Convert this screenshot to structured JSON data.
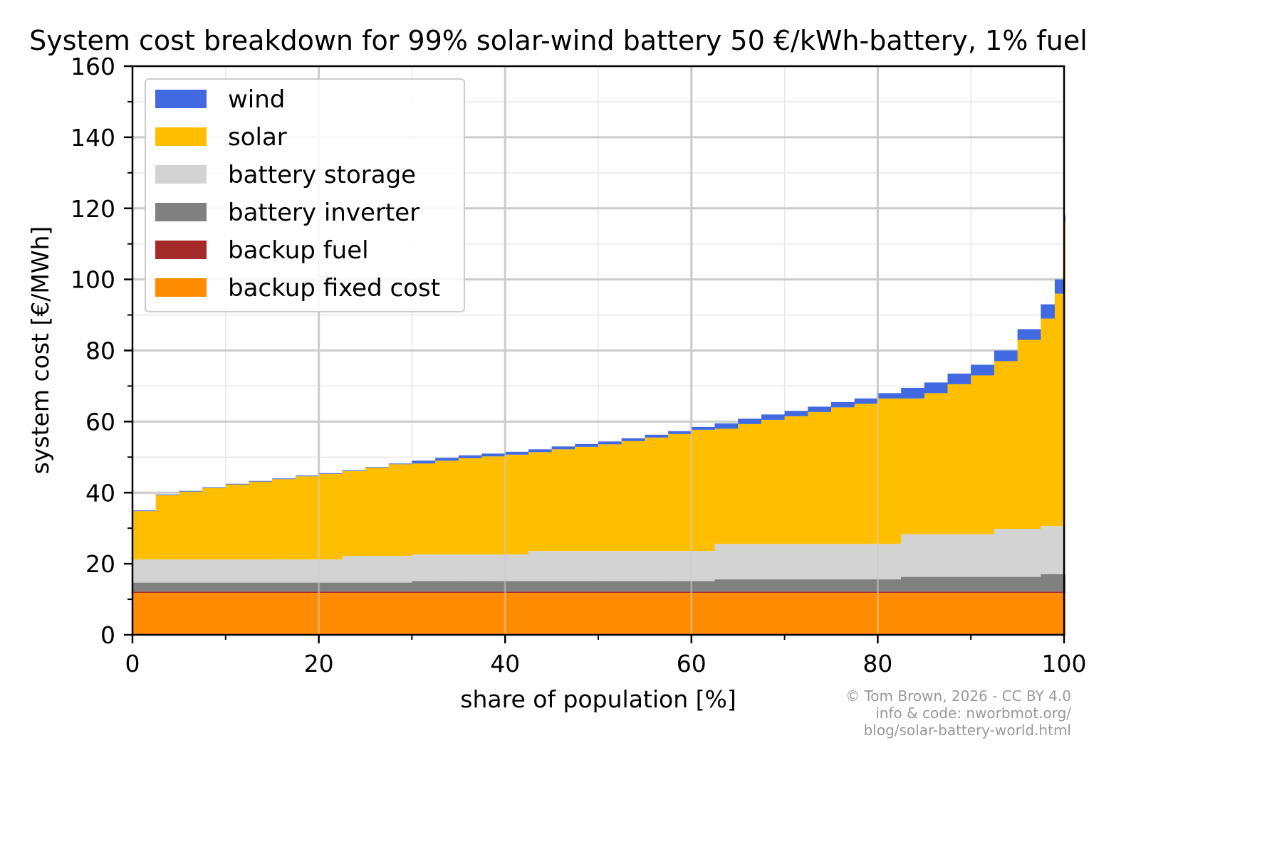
{
  "chart_data": {
    "type": "bar",
    "stacked": true,
    "title": "System cost breakdown for 99% solar-wind battery 50 €/kWh-battery, 1% fuel",
    "xlabel": "share of population [%]",
    "ylabel": "system cost [€/MWh]",
    "xlim": [
      0,
      100
    ],
    "ylim": [
      0,
      160
    ],
    "xticks": [
      "0",
      "20",
      "40",
      "60",
      "80",
      "100"
    ],
    "yticks": [
      "0",
      "20",
      "40",
      "60",
      "80",
      "100",
      "120",
      "140",
      "160"
    ],
    "grid": true,
    "legend_position": "top-left",
    "x": [
      0,
      2.5,
      5,
      7.5,
      10,
      12.5,
      15,
      17.5,
      20,
      22.5,
      25,
      27.5,
      30,
      32.5,
      35,
      37.5,
      40,
      42.5,
      45,
      47.5,
      50,
      52.5,
      55,
      57.5,
      60,
      62.5,
      65,
      67.5,
      70,
      72.5,
      75,
      77.5,
      80,
      82.5,
      85,
      87.5,
      90,
      92.5,
      95,
      97.5,
      99,
      100
    ],
    "series": [
      {
        "name": "backup fixed cost",
        "color": "#ff8c00",
        "values": [
          11.8,
          11.8,
          11.8,
          11.8,
          11.8,
          11.8,
          11.8,
          11.8,
          11.8,
          11.8,
          11.8,
          11.8,
          11.8,
          11.8,
          11.8,
          11.8,
          11.8,
          11.8,
          11.8,
          11.8,
          11.8,
          11.8,
          11.8,
          11.8,
          11.8,
          11.8,
          11.8,
          11.8,
          11.8,
          11.8,
          11.8,
          11.8,
          11.8,
          11.8,
          11.8,
          11.8,
          11.8,
          11.8,
          11.8,
          11.8,
          11.8,
          11.8
        ]
      },
      {
        "name": "backup fuel",
        "color": "#a52a2a",
        "values": [
          0.3,
          0.3,
          0.3,
          0.3,
          0.3,
          0.3,
          0.3,
          0.3,
          0.3,
          0.3,
          0.3,
          0.3,
          0.3,
          0.3,
          0.3,
          0.3,
          0.3,
          0.3,
          0.3,
          0.3,
          0.3,
          0.3,
          0.3,
          0.3,
          0.3,
          0.3,
          0.3,
          0.3,
          0.3,
          0.3,
          0.3,
          0.3,
          0.3,
          0.3,
          0.3,
          0.3,
          0.3,
          0.3,
          0.3,
          0.3,
          0.3,
          0.3
        ]
      },
      {
        "name": "battery inverter",
        "color": "#808080",
        "values": [
          2.6,
          2.6,
          2.6,
          2.6,
          2.6,
          2.6,
          2.6,
          2.6,
          2.6,
          2.6,
          2.6,
          2.6,
          3.0,
          3.0,
          3.0,
          3.0,
          3.0,
          3.0,
          3.0,
          3.0,
          3.0,
          3.0,
          3.0,
          3.0,
          3.0,
          3.5,
          3.5,
          3.5,
          3.5,
          3.5,
          3.5,
          3.5,
          3.5,
          4.2,
          4.2,
          4.2,
          4.2,
          4.2,
          4.2,
          5.0,
          5.0,
          5.0
        ]
      },
      {
        "name": "battery storage",
        "color": "#d3d3d3",
        "values": [
          6.5,
          6.5,
          6.5,
          6.5,
          6.5,
          6.5,
          6.5,
          6.5,
          6.5,
          7.5,
          7.5,
          7.5,
          7.5,
          7.5,
          7.5,
          7.5,
          7.5,
          8.5,
          8.5,
          8.5,
          8.5,
          8.5,
          8.5,
          8.5,
          8.5,
          10,
          10,
          10,
          10,
          10,
          10,
          10,
          10,
          12,
          12,
          12,
          12,
          13.5,
          13.5,
          13.5,
          13.5,
          15
        ]
      },
      {
        "name": "solar",
        "color": "#ffbf00",
        "values": [
          13.6,
          18.1,
          19.1,
          20.1,
          21.1,
          21.9,
          22.6,
          23.4,
          24.1,
          23.9,
          24.8,
          25.8,
          25.6,
          26.4,
          27.1,
          27.6,
          28.1,
          27.8,
          28.6,
          29.3,
          30.0,
          30.9,
          31.9,
          32.9,
          34.1,
          32.4,
          33.7,
          34.9,
          35.9,
          37.1,
          38.4,
          39.4,
          40.9,
          38.2,
          39.7,
          42.2,
          44.7,
          47.2,
          53.2,
          58.4,
          65.4,
          83.9
        ]
      },
      {
        "name": "wind",
        "color": "#4169e1",
        "values": [
          0.2,
          0.2,
          0.2,
          0.2,
          0.2,
          0.2,
          0.2,
          0.2,
          0.2,
          0.2,
          0.2,
          0.2,
          0.8,
          0.8,
          0.8,
          0.8,
          0.8,
          0.8,
          0.8,
          0.8,
          0.8,
          0.8,
          0.8,
          0.8,
          0.8,
          1.5,
          1.5,
          1.5,
          1.5,
          1.5,
          1.5,
          1.5,
          1.5,
          3,
          3,
          3,
          3,
          3,
          3,
          4,
          4,
          2
        ]
      }
    ],
    "legend": [
      "wind",
      "solar",
      "battery storage",
      "battery inverter",
      "backup fuel",
      "backup fixed cost"
    ]
  },
  "credits": {
    "line1": "© Tom Brown, 2026 - CC BY 4.0",
    "line2": "info & code: nworbmot.org/",
    "line3": "blog/solar-battery-world.html"
  }
}
